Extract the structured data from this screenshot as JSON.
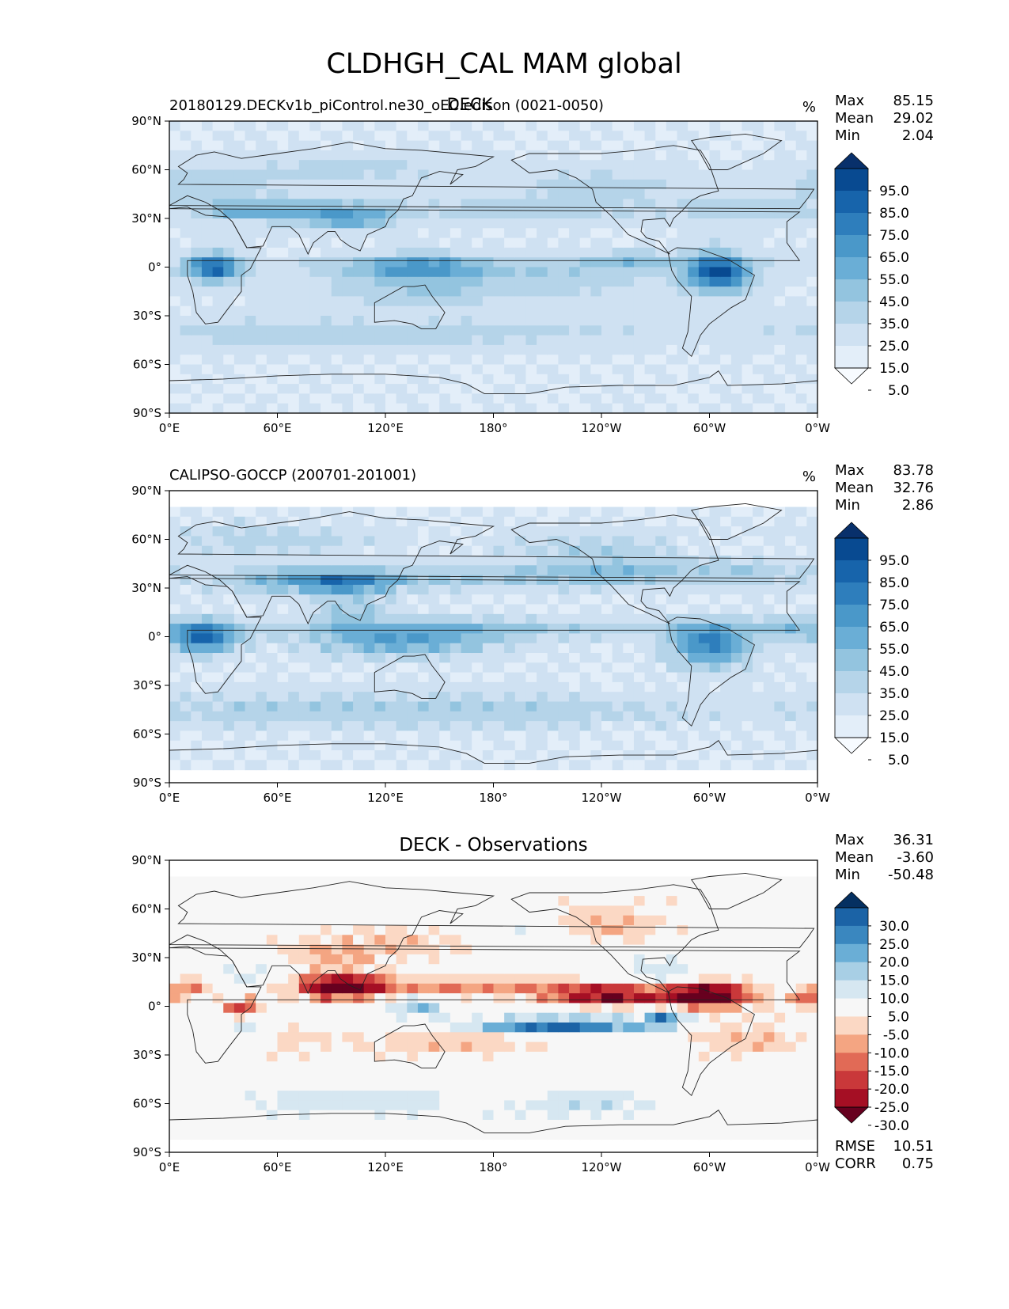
{
  "figure": {
    "title": "CLDHGH_CAL MAM global"
  },
  "chart_data": [
    {
      "type": "heatmap",
      "panel": "model",
      "title": "DECK",
      "subtitle": "20180129.DECKv1b_piControl.ne30_oEC.edison (0021-0050)",
      "units": "%",
      "stats": [
        {
          "label": "Max",
          "value": "85.15"
        },
        {
          "label": "Mean",
          "value": "29.02"
        },
        {
          "label": "Min",
          "value": "2.04"
        }
      ],
      "xlim": [
        0,
        360
      ],
      "ylim": [
        -90,
        90
      ],
      "xticks": [
        "0°E",
        "60°E",
        "120°E",
        "180°",
        "120°W",
        "60°W",
        "0°W"
      ],
      "yticks": [
        "90°N",
        "60°N",
        "30°N",
        "0°",
        "30°S",
        "60°S",
        "90°S"
      ],
      "colorbar": {
        "colors": [
          "#f7fbff",
          "#e3eef9",
          "#cfe1f2",
          "#b5d4e9",
          "#93c4df",
          "#6aaed6",
          "#4a98c9",
          "#2e7ebc",
          "#1764ab",
          "#084a91",
          "#08306b"
        ],
        "labels": [
          "95.0",
          "85.0",
          "75.0",
          "65.0",
          "55.0",
          "45.0",
          "35.0",
          "25.0",
          "15.0",
          "5.0"
        ]
      },
      "footer_stats": []
    },
    {
      "type": "heatmap",
      "panel": "obs",
      "title": "",
      "subtitle": "CALIPSO-GOCCP (200701-201001)",
      "units": "%",
      "stats": [
        {
          "label": "Max",
          "value": "83.78"
        },
        {
          "label": "Mean",
          "value": "32.76"
        },
        {
          "label": "Min",
          "value": "2.86"
        }
      ],
      "xlim": [
        0,
        360
      ],
      "ylim": [
        -90,
        90
      ],
      "xticks": [
        "0°E",
        "60°E",
        "120°E",
        "180°",
        "120°W",
        "60°W",
        "0°W"
      ],
      "yticks": [
        "90°N",
        "60°N",
        "30°N",
        "0°",
        "30°S",
        "60°S",
        "90°S"
      ],
      "colorbar": {
        "colors": [
          "#f7fbff",
          "#e3eef9",
          "#cfe1f2",
          "#b5d4e9",
          "#93c4df",
          "#6aaed6",
          "#4a98c9",
          "#2e7ebc",
          "#1764ab",
          "#084a91",
          "#08306b"
        ],
        "labels": [
          "95.0",
          "85.0",
          "75.0",
          "65.0",
          "55.0",
          "45.0",
          "35.0",
          "25.0",
          "15.0",
          "5.0"
        ]
      },
      "footer_stats": []
    },
    {
      "type": "heatmap",
      "panel": "diff",
      "title": "DECK - Observations",
      "subtitle": "",
      "units": "",
      "stats": [
        {
          "label": "Max",
          "value": "36.31"
        },
        {
          "label": "Mean",
          "value": "-3.60"
        },
        {
          "label": "Min",
          "value": "-50.48"
        }
      ],
      "xlim": [
        0,
        360
      ],
      "ylim": [
        -90,
        90
      ],
      "xticks": [
        "0°E",
        "60°E",
        "120°E",
        "180°",
        "120°W",
        "60°W",
        "0°W"
      ],
      "yticks": [
        "90°N",
        "60°N",
        "30°N",
        "0°",
        "30°S",
        "60°S",
        "90°S"
      ],
      "colorbar": {
        "colors": [
          "#67001f",
          "#a50f24",
          "#c9383a",
          "#e16a56",
          "#f4a582",
          "#fbd8c4",
          "#f7f7f7",
          "#d6e7f1",
          "#a8cfe5",
          "#6aaed6",
          "#3a87bf",
          "#1b63a6",
          "#053061"
        ],
        "labels": [
          "30.0",
          "25.0",
          "20.0",
          "15.0",
          "10.0",
          "5.0",
          "-5.0",
          "-10.0",
          "-15.0",
          "-20.0",
          "-25.0",
          "-30.0"
        ]
      },
      "footer_stats": [
        {
          "label": "RMSE",
          "value": "10.51"
        },
        {
          "label": "CORR",
          "value": "0.75"
        }
      ]
    }
  ]
}
